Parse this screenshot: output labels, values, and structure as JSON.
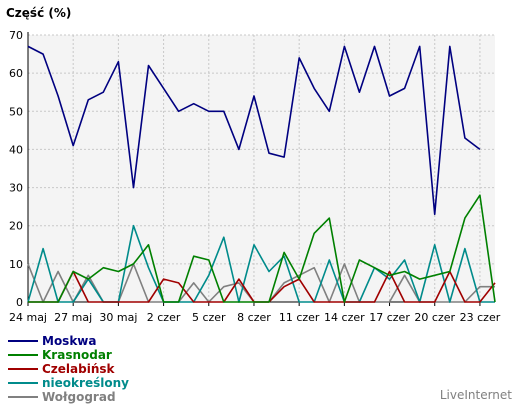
{
  "chart_data": {
    "type": "line",
    "ylabel": "Część (%)",
    "ylim": [
      0,
      70
    ],
    "yticks": [
      0,
      10,
      20,
      30,
      40,
      50,
      60,
      70
    ],
    "grid": true,
    "legend_position": "bottom-left",
    "xtick_labels": [
      "24 maj",
      "27 maj",
      "30 maj",
      "2 czer",
      "5 czer",
      "8 czer",
      "11 czer",
      "14 czer",
      "17 czer",
      "20 czer",
      "23 czer"
    ],
    "x": [
      "24 maj",
      "25 maj",
      "26 maj",
      "27 maj",
      "28 maj",
      "29 maj",
      "30 maj",
      "31 maj",
      "1 czer",
      "2 czer",
      "3 czer",
      "4 czer",
      "5 czer",
      "6 czer",
      "7 czer",
      "8 czer",
      "9 czer",
      "10 czer",
      "11 czer",
      "12 czer",
      "13 czer",
      "14 czer",
      "15 czer",
      "16 czer",
      "17 czer",
      "18 czer",
      "19 czer",
      "20 czer",
      "21 czer",
      "22 czer",
      "23 czer",
      "24 czer"
    ],
    "series": [
      {
        "name": "Moskwa",
        "color": "#000080",
        "values": [
          67,
          65,
          54,
          41,
          53,
          55,
          63,
          30,
          62,
          56,
          50,
          52,
          50,
          50,
          40,
          54,
          39,
          38,
          64,
          56,
          50,
          67,
          55,
          67,
          54,
          56,
          67,
          23,
          67,
          43,
          40,
          null
        ]
      },
      {
        "name": "Krasnodar",
        "color": "#008000",
        "values": [
          0,
          0,
          0,
          8,
          6,
          9,
          8,
          10,
          15,
          0,
          0,
          12,
          11,
          0,
          0,
          0,
          0,
          13,
          6,
          18,
          22,
          0,
          11,
          9,
          7,
          8,
          6,
          7,
          8,
          22,
          28,
          0
        ]
      },
      {
        "name": "Czelabińsk",
        "color": "#a00000",
        "values": [
          0,
          0,
          0,
          8,
          0,
          0,
          0,
          0,
          0,
          6,
          5,
          0,
          0,
          0,
          6,
          0,
          0,
          4,
          6,
          0,
          0,
          0,
          0,
          0,
          8,
          0,
          0,
          0,
          8,
          0,
          0,
          5
        ]
      },
      {
        "name": "nieokreślony",
        "color": "#008b8b",
        "values": [
          0,
          14,
          0,
          0,
          6,
          0,
          0,
          20,
          9,
          0,
          0,
          0,
          7,
          17,
          0,
          15,
          8,
          12,
          0,
          0,
          11,
          0,
          0,
          9,
          6,
          11,
          0,
          15,
          0,
          14,
          0,
          0
        ]
      },
      {
        "name": "Wołgograd",
        "color": "#808080",
        "values": [
          10,
          0,
          8,
          0,
          7,
          0,
          0,
          10,
          0,
          0,
          0,
          5,
          0,
          4,
          5,
          0,
          0,
          5,
          7,
          9,
          0,
          10,
          0,
          0,
          0,
          7,
          0,
          0,
          0,
          0,
          4,
          4
        ]
      }
    ]
  },
  "brand": "LiveInternet"
}
